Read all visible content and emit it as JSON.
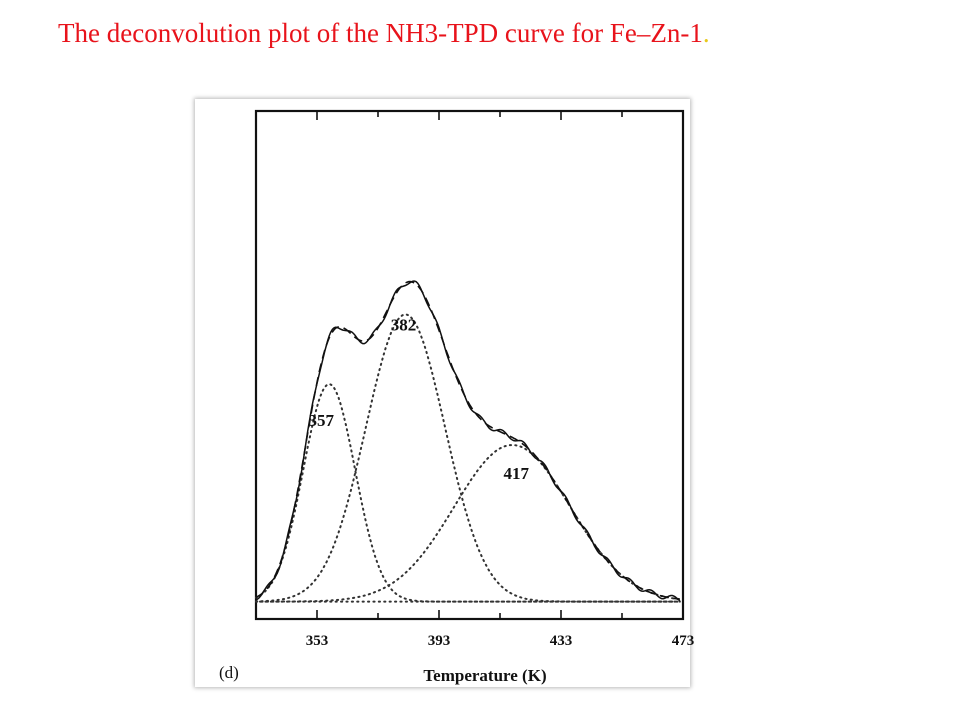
{
  "slide": {
    "title": "The deconvolution plot of the NH3-TPD curve for Fe–Zn-1",
    "title_end": "."
  },
  "figure": {
    "panel_label": "(d)"
  },
  "colors": {
    "title": "#e8131b",
    "title_period": "#e8c81b",
    "ink": "#111111"
  },
  "chart_data": {
    "type": "line",
    "xlabel": "Temperature (K)",
    "ylabel": "",
    "xlim": [
      333,
      473
    ],
    "ylim": [
      0,
      1
    ],
    "x_ticks": [
      353,
      393,
      433,
      473
    ],
    "x_tick_labels": [
      "353",
      "393",
      "433",
      "473"
    ],
    "grid": false,
    "legend": "none",
    "baseline": 0.04,
    "series": [
      {
        "style": "dotted",
        "peak_label": "357",
        "center": 357,
        "height": 0.5,
        "width": 8.5
      },
      {
        "style": "dotted",
        "peak_label": "382",
        "center": 382,
        "height": 0.66,
        "width": 13
      },
      {
        "style": "dotted",
        "peak_label": "417",
        "center": 417,
        "height": 0.36,
        "width": 19
      },
      {
        "style": "dashed",
        "description": "sum of fitted peaks"
      },
      {
        "style": "solid",
        "description": "experimental TPD signal"
      }
    ]
  }
}
